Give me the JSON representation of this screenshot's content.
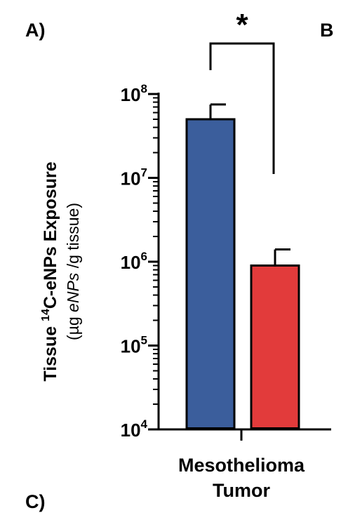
{
  "panel_labels": {
    "a": "A)",
    "b": "B",
    "c": "C)"
  },
  "significance": "*",
  "chart_data": {
    "type": "bar",
    "categories": [
      "Mesothelioma",
      "Tumor"
    ],
    "category_label_lines": [
      "Mesothelioma",
      "Tumor"
    ],
    "yscale": "log",
    "ylim": [
      10000,
      100000000
    ],
    "ylabel": {
      "line1_pre": "Tissue ",
      "line1_sup": "14",
      "line1_post": "C-eNPs Exposure",
      "line2_pre": "(µg ",
      "line2_italic": "eNPs",
      "line2_post": " /g tissue)"
    },
    "yticks": [
      {
        "value": 10000,
        "base": "10",
        "exp": "4"
      },
      {
        "value": 100000,
        "base": "10",
        "exp": "5"
      },
      {
        "value": 1000000,
        "base": "10",
        "exp": "6"
      },
      {
        "value": 10000000,
        "base": "10",
        "exp": "7"
      },
      {
        "value": 100000000,
        "base": "10",
        "exp": "8"
      }
    ],
    "bars": [
      {
        "value": 50000000,
        "error_upper": 75000000,
        "color": "#3b5e9c"
      },
      {
        "value": 900000,
        "error_upper": 1400000,
        "color": "#e23b3b"
      }
    ],
    "grid": false
  }
}
